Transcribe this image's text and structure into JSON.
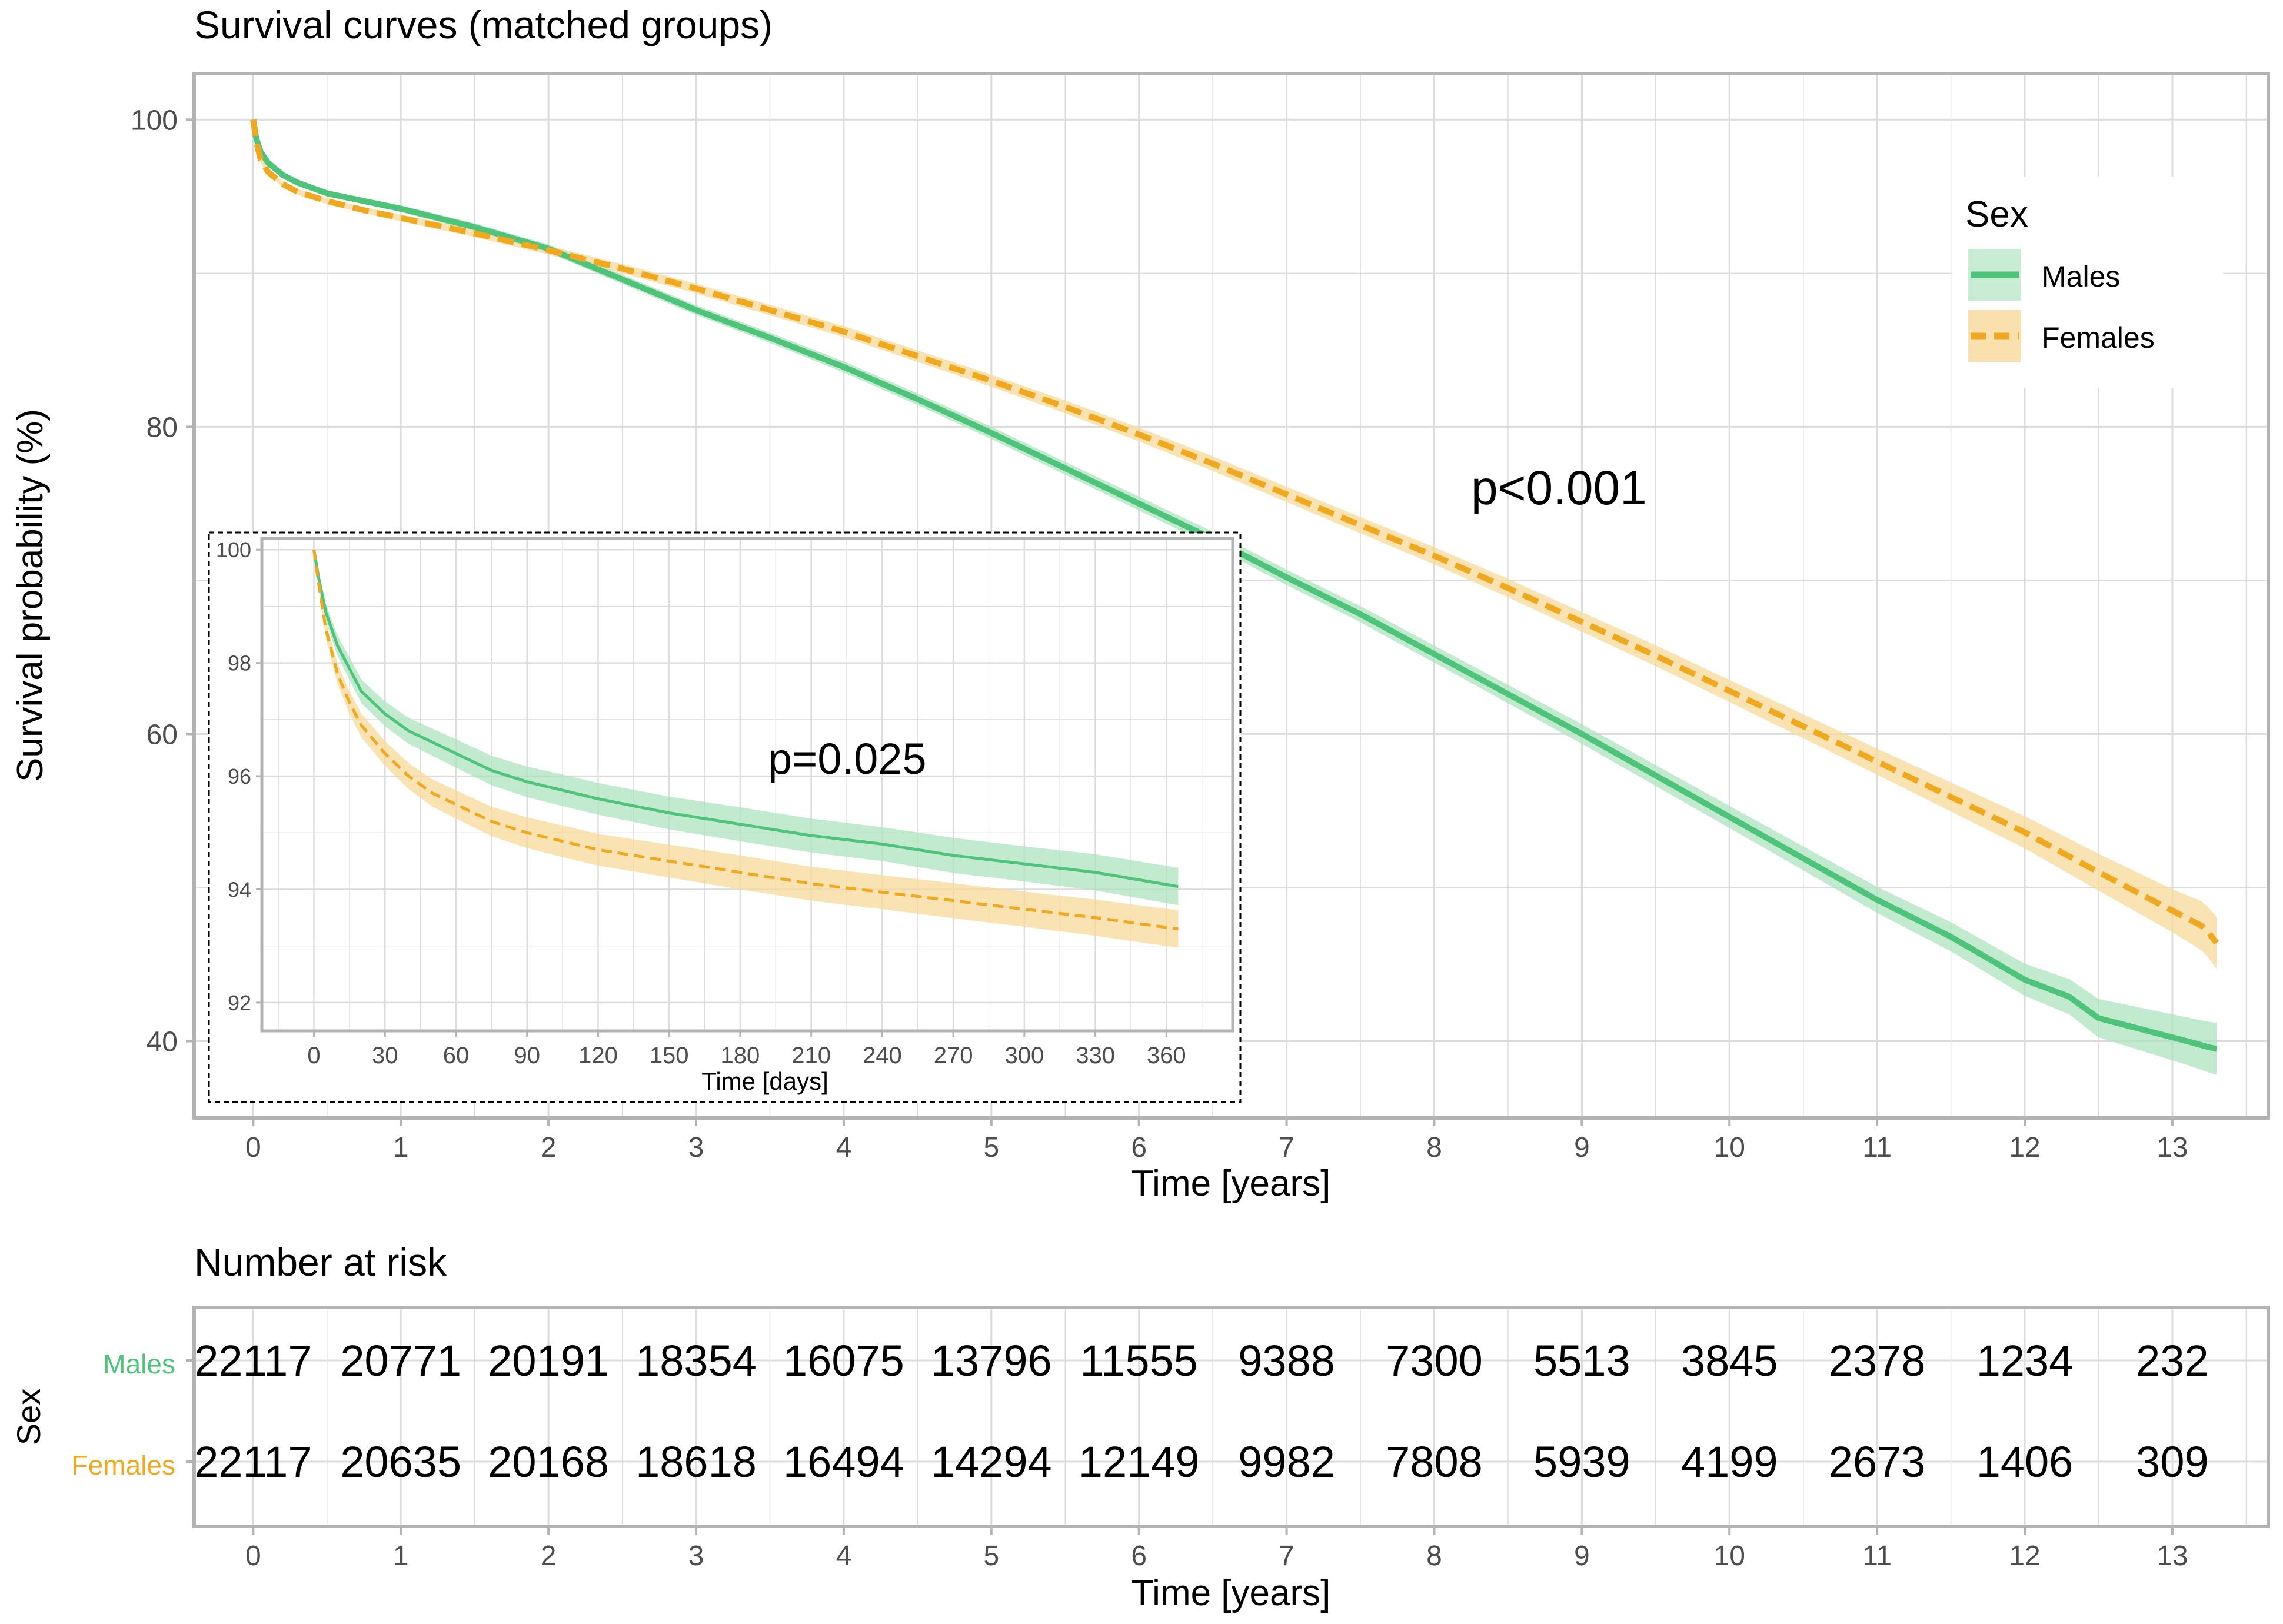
{
  "colors": {
    "males": "#4dc47a",
    "females": "#f0a81e",
    "males_band": "#aee3bf",
    "females_band": "#f7d99a",
    "grid": "#dcdcdc",
    "border": "#b3b3b3",
    "text": "#000000",
    "tick": "#4d4d4d"
  },
  "chart_data": [
    {
      "type": "line",
      "title": "Survival curves (matched groups)",
      "xlabel": "Time [years]",
      "ylabel": "Survival probability (%)",
      "xlim": [
        -0.4,
        13.65
      ],
      "ylim": [
        35,
        103
      ],
      "x_ticks": [
        0,
        1,
        2,
        3,
        4,
        5,
        6,
        7,
        8,
        9,
        10,
        11,
        12,
        13
      ],
      "y_ticks": [
        40,
        60,
        80,
        100
      ],
      "grid": true,
      "annotation": "p<0.001",
      "legend": {
        "title": "Sex",
        "position": "top-right",
        "entries": [
          "Males",
          "Females"
        ]
      },
      "series": [
        {
          "name": "Males",
          "line_style": "solid",
          "x": [
            0,
            0.02,
            0.05,
            0.1,
            0.2,
            0.3,
            0.5,
            0.75,
            1,
            1.5,
            2,
            2.5,
            3,
            3.5,
            4,
            4.5,
            5,
            5.5,
            6,
            6.5,
            7,
            7.5,
            8,
            8.5,
            9,
            9.5,
            10,
            10.5,
            11,
            11.5,
            12,
            12.3,
            12.5,
            12.7,
            12.9,
            13.1,
            13.25,
            13.3
          ],
          "y": [
            100,
            98.8,
            97.9,
            97.2,
            96.4,
            95.9,
            95.2,
            94.7,
            94.2,
            93.0,
            91.6,
            89.6,
            87.6,
            85.8,
            83.9,
            81.8,
            79.6,
            77.3,
            75.0,
            72.7,
            70.2,
            67.8,
            65.2,
            62.6,
            60.0,
            57.3,
            54.6,
            51.9,
            49.2,
            46.8,
            44.0,
            42.9,
            41.5,
            41.0,
            40.5,
            40.0,
            39.6,
            39.5
          ],
          "ci_halfwidth": [
            0,
            0.15,
            0.2,
            0.2,
            0.2,
            0.2,
            0.2,
            0.2,
            0.22,
            0.25,
            0.28,
            0.3,
            0.32,
            0.34,
            0.36,
            0.38,
            0.4,
            0.42,
            0.45,
            0.48,
            0.5,
            0.53,
            0.56,
            0.6,
            0.64,
            0.68,
            0.72,
            0.78,
            0.85,
            0.95,
            1.05,
            1.15,
            1.25,
            1.35,
            1.45,
            1.55,
            1.65,
            1.7
          ]
        },
        {
          "name": "Females",
          "line_style": "dashed",
          "x": [
            0,
            0.02,
            0.05,
            0.1,
            0.2,
            0.3,
            0.5,
            0.75,
            1,
            1.5,
            2,
            2.5,
            3,
            3.5,
            4,
            4.5,
            5,
            5.5,
            6,
            6.5,
            7,
            7.5,
            8,
            8.5,
            9,
            9.5,
            10,
            10.5,
            11,
            11.5,
            12,
            12.5,
            13,
            13.1,
            13.2,
            13.25,
            13.3
          ],
          "y": [
            100,
            98.6,
            97.4,
            96.6,
            95.8,
            95.3,
            94.7,
            94.1,
            93.6,
            92.6,
            91.5,
            90.3,
            89.0,
            87.6,
            86.2,
            84.6,
            83.0,
            81.3,
            79.5,
            77.6,
            75.6,
            73.6,
            71.6,
            69.5,
            67.3,
            65.1,
            62.8,
            60.5,
            58.2,
            55.9,
            53.6,
            51.0,
            48.5,
            48.0,
            47.5,
            47.0,
            46.4
          ],
          "ci_halfwidth": [
            0,
            0.15,
            0.2,
            0.2,
            0.2,
            0.2,
            0.2,
            0.2,
            0.22,
            0.25,
            0.28,
            0.3,
            0.32,
            0.34,
            0.36,
            0.38,
            0.4,
            0.42,
            0.45,
            0.48,
            0.5,
            0.53,
            0.56,
            0.6,
            0.64,
            0.68,
            0.72,
            0.78,
            0.85,
            0.95,
            1.05,
            1.2,
            1.4,
            1.5,
            1.6,
            1.65,
            1.7
          ]
        }
      ]
    },
    {
      "type": "line",
      "title": "",
      "xlabel": "Time [days]",
      "ylabel": "",
      "xlim": [
        -22,
        388
      ],
      "ylim": [
        91.5,
        100.2
      ],
      "x_ticks": [
        0,
        30,
        60,
        90,
        120,
        150,
        180,
        210,
        240,
        270,
        300,
        330,
        360
      ],
      "y_ticks": [
        92,
        94,
        96,
        98,
        100
      ],
      "grid": true,
      "annotation": "p=0.025",
      "series": [
        {
          "name": "Males",
          "line_style": "solid",
          "x": [
            0,
            2,
            5,
            10,
            15,
            20,
            30,
            40,
            50,
            60,
            75,
            90,
            105,
            120,
            150,
            180,
            210,
            240,
            270,
            300,
            330,
            365
          ],
          "y": [
            100,
            99.5,
            98.9,
            98.3,
            97.9,
            97.5,
            97.1,
            96.8,
            96.6,
            96.4,
            96.1,
            95.9,
            95.75,
            95.6,
            95.35,
            95.15,
            94.95,
            94.8,
            94.6,
            94.45,
            94.3,
            94.05
          ],
          "ci_halfwidth": [
            0,
            0.1,
            0.15,
            0.18,
            0.2,
            0.21,
            0.22,
            0.23,
            0.24,
            0.25,
            0.26,
            0.27,
            0.28,
            0.28,
            0.29,
            0.3,
            0.3,
            0.3,
            0.31,
            0.31,
            0.32,
            0.33
          ]
        },
        {
          "name": "Females",
          "line_style": "dashed",
          "x": [
            0,
            2,
            5,
            10,
            15,
            20,
            30,
            40,
            50,
            60,
            75,
            90,
            105,
            120,
            150,
            180,
            210,
            240,
            270,
            300,
            330,
            365
          ],
          "y": [
            100,
            99.4,
            98.6,
            97.8,
            97.3,
            96.9,
            96.4,
            96.0,
            95.7,
            95.5,
            95.2,
            95.0,
            94.85,
            94.7,
            94.5,
            94.3,
            94.1,
            93.95,
            93.8,
            93.65,
            93.5,
            93.3
          ],
          "ci_halfwidth": [
            0,
            0.1,
            0.15,
            0.18,
            0.2,
            0.21,
            0.22,
            0.23,
            0.24,
            0.25,
            0.26,
            0.27,
            0.28,
            0.28,
            0.29,
            0.3,
            0.3,
            0.3,
            0.31,
            0.31,
            0.32,
            0.33
          ]
        }
      ]
    },
    {
      "type": "table",
      "title": "Number at risk",
      "xlabel": "Time [years]",
      "ylabel": "Sex",
      "x_ticks": [
        0,
        1,
        2,
        3,
        4,
        5,
        6,
        7,
        8,
        9,
        10,
        11,
        12,
        13
      ],
      "rows": [
        {
          "name": "Males",
          "values": [
            "22117",
            "20771",
            "20191",
            "18354",
            "16075",
            "13796",
            "11555",
            "9388",
            "7300",
            "5513",
            "3845",
            "2378",
            "1234",
            "232"
          ]
        },
        {
          "name": "Females",
          "values": [
            "22117",
            "20635",
            "20168",
            "18618",
            "16494",
            "14294",
            "12149",
            "9982",
            "7808",
            "5939",
            "4199",
            "2673",
            "1406",
            "309"
          ]
        }
      ]
    }
  ]
}
